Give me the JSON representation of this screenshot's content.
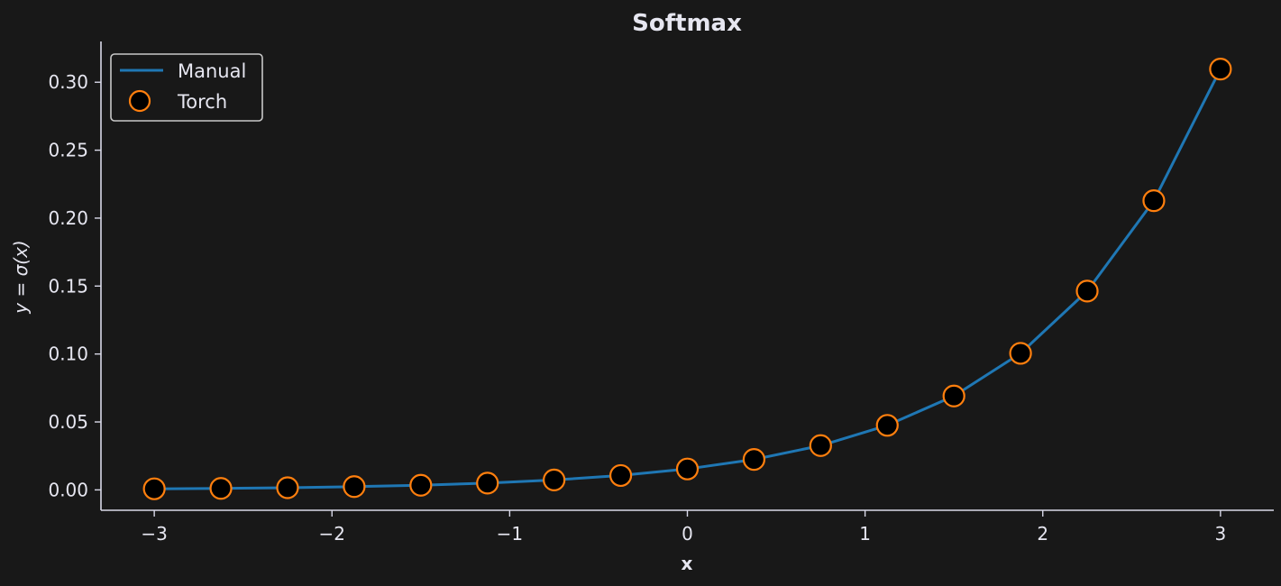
{
  "chart_data": {
    "type": "line",
    "title": "Softmax",
    "xlabel": "x",
    "ylabel": "y = σ(x)",
    "xlim": [
      -3.3,
      3.3
    ],
    "ylim": [
      -0.015,
      0.33
    ],
    "x_ticks": [
      -3,
      -2,
      -1,
      0,
      1,
      2,
      3
    ],
    "x_tick_labels": [
      "−3",
      "−2",
      "−1",
      "0",
      "1",
      "2",
      "3"
    ],
    "y_ticks": [
      0.0,
      0.05,
      0.1,
      0.15,
      0.2,
      0.25,
      0.3
    ],
    "y_tick_labels": [
      "0.00",
      "0.05",
      "0.10",
      "0.15",
      "0.20",
      "0.25",
      "0.30"
    ],
    "grid": false,
    "legend_position": "top-left",
    "x": [
      -3.0,
      -2.625,
      -2.25,
      -1.875,
      -1.5,
      -1.125,
      -0.75,
      -0.375,
      0.0,
      0.375,
      0.75,
      1.125,
      1.5,
      1.875,
      2.25,
      2.625,
      3.0
    ],
    "series": [
      {
        "name": "Manual",
        "style": "line",
        "color": "#1f77b4",
        "values": [
          0.0008,
          0.0011,
          0.0016,
          0.0024,
          0.0034,
          0.005,
          0.0073,
          0.0106,
          0.0154,
          0.0224,
          0.0326,
          0.0475,
          0.0691,
          0.1005,
          0.1463,
          0.2128,
          0.3097
        ]
      },
      {
        "name": "Torch",
        "style": "markers",
        "color": "#ff7f0e",
        "values": [
          0.0008,
          0.0011,
          0.0016,
          0.0024,
          0.0034,
          0.005,
          0.0073,
          0.0106,
          0.0154,
          0.0224,
          0.0326,
          0.0475,
          0.0691,
          0.1005,
          0.1463,
          0.2128,
          0.3097
        ]
      }
    ],
    "colors": {
      "background": "#181818",
      "axis": "#d9d9e8",
      "text": "#e6e6f0",
      "marker_face": "#000000"
    }
  }
}
